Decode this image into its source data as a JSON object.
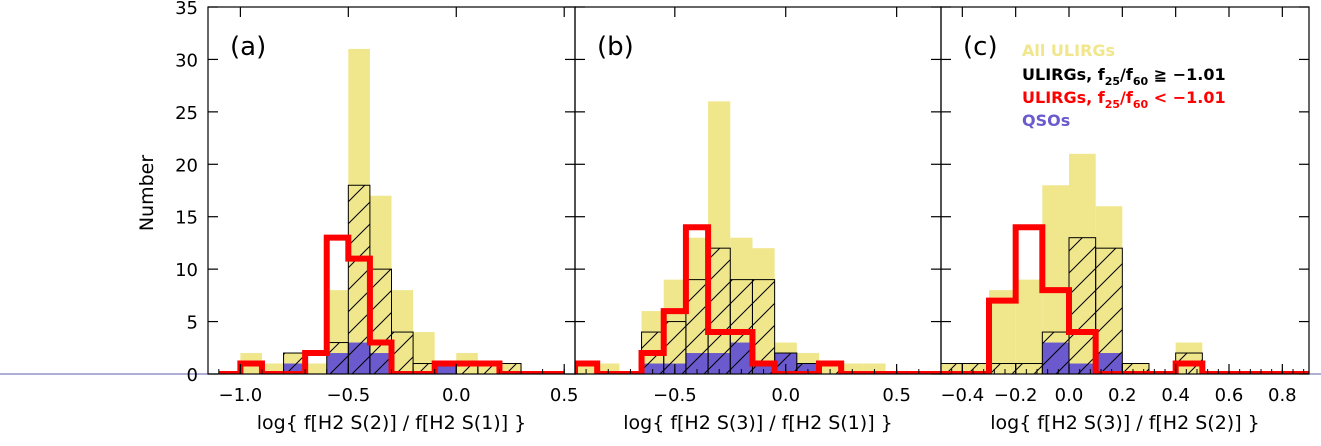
{
  "ylabel": "Number",
  "yticks": [
    0,
    5,
    10,
    15,
    20,
    25,
    30,
    35
  ],
  "legend": [
    {
      "label": "All  ULIRGs",
      "color": "#f0e68c",
      "sub": null
    },
    {
      "label": "ULIRGs, f",
      "sub1": "25",
      "mid": "/f",
      "sub2": "60",
      "tail": " ≧ −1.01",
      "color": "#000000"
    },
    {
      "label": "ULIRGs, f",
      "sub1": "25",
      "mid": "/f",
      "sub2": "60",
      "tail": " < −1.01",
      "color": "#ff0000"
    },
    {
      "label": "QSOs",
      "color": "#6a5acd",
      "sub": null
    }
  ],
  "colors": {
    "all": "#f0e68c",
    "qso": "#6a5acd",
    "warm": "#000000",
    "cold": "#ff0000"
  },
  "chart_data": [
    {
      "type": "histogram",
      "panel_label": "(a)",
      "xlabel": "log{  f[H2 S(2)]  /  f[H2 S(1)]  }",
      "xlim": [
        -1.15,
        0.55
      ],
      "ylim": [
        0,
        35
      ],
      "xticks": [
        -1.0,
        -0.5,
        0.0,
        0.5
      ],
      "xtick_labels": [
        "−1.0",
        "−0.5",
        "0.0",
        "0.5"
      ],
      "bin_edges": [
        -1.1,
        -1.0,
        -0.9,
        -0.8,
        -0.7,
        -0.6,
        -0.5,
        -0.4,
        -0.3,
        -0.2,
        -0.1,
        0.0,
        0.1,
        0.2,
        0.3,
        0.4,
        0.5
      ],
      "series": [
        {
          "name": "All  ULIRGs",
          "values": [
            0,
            2,
            1,
            2,
            1,
            8,
            31,
            17,
            8,
            4,
            1,
            2,
            1,
            1,
            0,
            0
          ]
        },
        {
          "name": "ULIRGs, f25/f60 ≧ −1.01",
          "values": [
            0,
            0,
            0,
            2,
            0,
            3,
            18,
            10,
            4,
            1,
            0,
            1,
            1,
            1,
            0,
            0
          ]
        },
        {
          "name": "ULIRGs, f25/f60 < −1.01",
          "values": [
            0,
            1,
            0,
            0,
            2,
            13,
            11,
            3,
            0,
            0,
            1,
            1,
            1,
            0,
            0,
            0
          ]
        },
        {
          "name": "QSOs",
          "values": [
            0,
            0,
            0,
            1,
            0,
            2,
            3,
            2,
            0,
            0,
            1,
            0,
            0,
            0,
            0,
            0
          ]
        }
      ]
    },
    {
      "type": "histogram",
      "panel_label": "(b)",
      "xlabel": "log{  f[H2 S(3)]  /  f[H2 S(1)]  }",
      "xlim": [
        -0.95,
        0.7
      ],
      "ylim": [
        0,
        35
      ],
      "xticks": [
        -0.5,
        0.0,
        0.5
      ],
      "xtick_labels": [
        "−0.5",
        "0.0",
        "0.5"
      ],
      "bin_edges": [
        -0.95,
        -0.85,
        -0.75,
        -0.65,
        -0.55,
        -0.45,
        -0.35,
        -0.25,
        -0.15,
        -0.05,
        0.05,
        0.15,
        0.25,
        0.35,
        0.45,
        0.55,
        0.65,
        0.75
      ],
      "series": [
        {
          "name": "All  ULIRGs",
          "values": [
            1,
            1,
            0,
            6,
            9,
            13,
            26,
            13,
            12,
            3,
            2,
            1,
            1,
            1,
            0,
            0,
            0
          ]
        },
        {
          "name": "ULIRGs, f25/f60 ≧ −1.01",
          "values": [
            0,
            0,
            0,
            4,
            5,
            9,
            12,
            9,
            9,
            2,
            1,
            1,
            0,
            0,
            0,
            0,
            0
          ]
        },
        {
          "name": "ULIRGs, f25/f60 < −1.01",
          "values": [
            1,
            0,
            0,
            2,
            6,
            14,
            4,
            4,
            1,
            0,
            0,
            1,
            0,
            0,
            0,
            0,
            0
          ]
        },
        {
          "name": "QSOs",
          "values": [
            0,
            0,
            0,
            1,
            1,
            2,
            2,
            3,
            1,
            2,
            1,
            0,
            0,
            0,
            0,
            0,
            0
          ]
        }
      ]
    },
    {
      "type": "histogram",
      "panel_label": "(c)",
      "xlabel": "log{  f[H2 S(3)]  /  f[H2 S(2)]  }",
      "xlim": [
        -0.48,
        0.9
      ],
      "ylim": [
        0,
        35
      ],
      "xticks": [
        -0.4,
        -0.2,
        0.0,
        0.2,
        0.4,
        0.6,
        0.8
      ],
      "xtick_labels": [
        "−0.4",
        "−0.2",
        "0.0",
        "0.2",
        "0.4",
        "0.6",
        "0.8"
      ],
      "bin_edges": [
        -0.5,
        -0.4,
        -0.3,
        -0.2,
        -0.1,
        0.0,
        0.1,
        0.2,
        0.3,
        0.4,
        0.5,
        0.6,
        0.7,
        0.8,
        0.9
      ],
      "series": [
        {
          "name": "All  ULIRGs",
          "values": [
            1,
            1,
            8,
            9,
            18,
            21,
            16,
            1,
            0,
            3,
            0,
            0,
            0,
            0
          ]
        },
        {
          "name": "ULIRGs, f25/f60 ≧ −1.01",
          "values": [
            1,
            1,
            1,
            1,
            4,
            13,
            12,
            1,
            0,
            2,
            0,
            0,
            0,
            0
          ]
        },
        {
          "name": "ULIRGs, f25/f60 < −1.01",
          "values": [
            0,
            0,
            7,
            14,
            8,
            4,
            0,
            0,
            0,
            1,
            0,
            0,
            0,
            0
          ]
        },
        {
          "name": "QSOs",
          "values": [
            0,
            0,
            0,
            0,
            3,
            1,
            2,
            0,
            0,
            0,
            0,
            0,
            0,
            0
          ]
        }
      ]
    }
  ]
}
